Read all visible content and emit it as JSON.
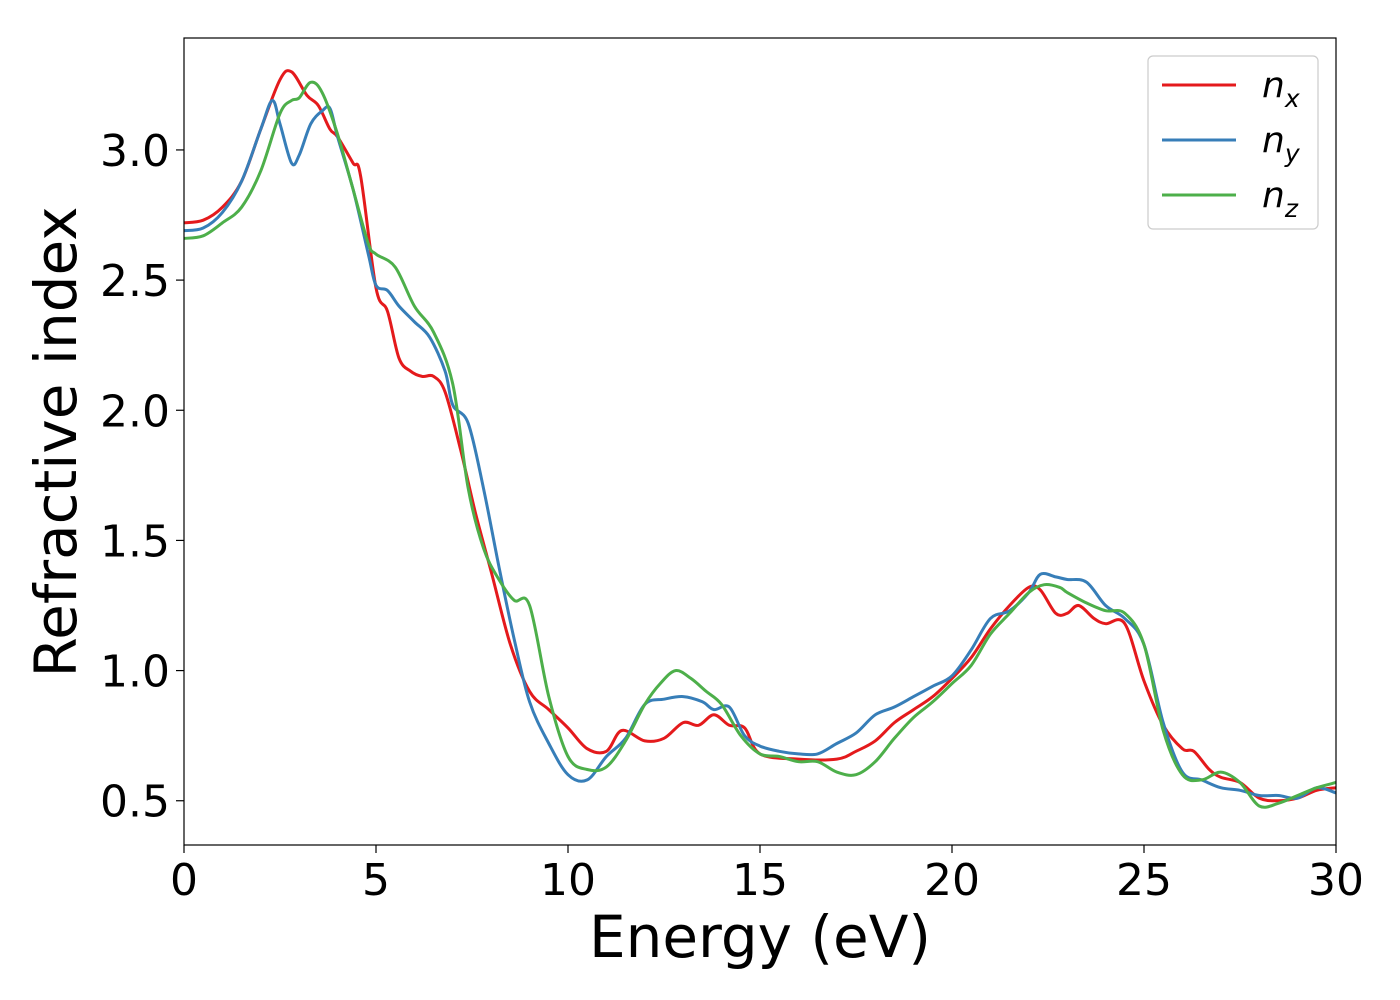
{
  "chart_data": {
    "type": "line",
    "xlabel": "Energy (eV)",
    "ylabel": "Refractive index",
    "xlim": [
      0,
      30
    ],
    "ylim": [
      0.33,
      3.43
    ],
    "xticks": [
      0,
      5,
      10,
      15,
      20,
      25,
      30
    ],
    "xtick_labels": [
      "0",
      "5",
      "10",
      "15",
      "20",
      "25",
      "30"
    ],
    "yticks": [
      0.5,
      1.0,
      1.5,
      2.0,
      2.5,
      3.0
    ],
    "ytick_labels": [
      "0.5",
      "1.0",
      "1.5",
      "2.0",
      "2.5",
      "3.0"
    ],
    "grid": false,
    "legend_position": "top-right",
    "series": [
      {
        "name": "n",
        "sub": "x",
        "color": "#e41a1c",
        "x": [
          0,
          0.5,
          1,
          1.5,
          2,
          2.5,
          2.8,
          3.2,
          3.5,
          3.8,
          4.0,
          4.4,
          4.6,
          5.0,
          5.3,
          5.6,
          5.9,
          6.2,
          6.5,
          6.8,
          7.2,
          7.6,
          8.0,
          8.5,
          9.0,
          9.5,
          10.0,
          10.5,
          11.0,
          11.4,
          12.0,
          12.5,
          13.0,
          13.4,
          13.8,
          14.2,
          14.6,
          15.0,
          16.0,
          17.0,
          17.5,
          18.0,
          18.5,
          19.0,
          19.5,
          20.0,
          20.5,
          21.0,
          21.5,
          22.0,
          22.3,
          22.7,
          23.0,
          23.3,
          23.7,
          24.0,
          24.5,
          25.0,
          25.5,
          26.0,
          26.3,
          26.7,
          27.0,
          27.5,
          28.0,
          28.5,
          29.0,
          29.5,
          30.0
        ],
        "y": [
          2.72,
          2.73,
          2.78,
          2.88,
          3.08,
          3.27,
          3.3,
          3.21,
          3.17,
          3.08,
          3.05,
          2.95,
          2.9,
          2.47,
          2.38,
          2.2,
          2.15,
          2.13,
          2.13,
          2.07,
          1.85,
          1.6,
          1.38,
          1.1,
          0.92,
          0.85,
          0.78,
          0.7,
          0.69,
          0.77,
          0.73,
          0.74,
          0.8,
          0.79,
          0.83,
          0.79,
          0.78,
          0.68,
          0.66,
          0.66,
          0.69,
          0.73,
          0.8,
          0.85,
          0.9,
          0.97,
          1.05,
          1.16,
          1.25,
          1.32,
          1.31,
          1.22,
          1.22,
          1.25,
          1.2,
          1.18,
          1.18,
          0.96,
          0.79,
          0.7,
          0.69,
          0.62,
          0.59,
          0.57,
          0.51,
          0.5,
          0.51,
          0.54,
          0.55
        ]
      },
      {
        "name": "n",
        "sub": "y",
        "color": "#377eb8",
        "x": [
          0,
          0.5,
          1,
          1.5,
          2,
          2.3,
          2.5,
          2.8,
          3.0,
          3.3,
          3.6,
          3.8,
          4.0,
          4.4,
          4.8,
          5.0,
          5.3,
          5.6,
          6.0,
          6.4,
          6.8,
          7.0,
          7.4,
          7.8,
          8.2,
          8.6,
          9.0,
          9.5,
          10.0,
          10.5,
          11.0,
          11.5,
          12.0,
          12.5,
          13.0,
          13.5,
          13.8,
          14.2,
          14.6,
          15.0,
          15.5,
          16.0,
          16.5,
          17.0,
          17.5,
          18.0,
          18.5,
          19.0,
          19.5,
          20.0,
          20.5,
          21.0,
          21.5,
          22.0,
          22.3,
          22.7,
          23.0,
          23.5,
          24.0,
          24.5,
          25.0,
          25.5,
          26.0,
          26.5,
          27.0,
          27.5,
          28.0,
          28.5,
          29.0,
          29.5,
          30.0
        ],
        "y": [
          2.69,
          2.7,
          2.76,
          2.88,
          3.08,
          3.19,
          3.1,
          2.95,
          2.98,
          3.1,
          3.15,
          3.16,
          3.05,
          2.85,
          2.6,
          2.48,
          2.46,
          2.4,
          2.34,
          2.28,
          2.15,
          2.02,
          1.95,
          1.7,
          1.4,
          1.12,
          0.88,
          0.72,
          0.6,
          0.58,
          0.67,
          0.74,
          0.87,
          0.89,
          0.9,
          0.88,
          0.85,
          0.86,
          0.75,
          0.71,
          0.69,
          0.68,
          0.68,
          0.72,
          0.76,
          0.83,
          0.86,
          0.9,
          0.94,
          0.98,
          1.08,
          1.2,
          1.23,
          1.3,
          1.37,
          1.36,
          1.35,
          1.34,
          1.25,
          1.2,
          1.1,
          0.8,
          0.61,
          0.58,
          0.55,
          0.54,
          0.52,
          0.52,
          0.51,
          0.55,
          0.53
        ]
      },
      {
        "name": "n",
        "sub": "z",
        "color": "#4daf4a",
        "x": [
          0,
          0.5,
          1,
          1.5,
          2,
          2.5,
          2.8,
          3.0,
          3.3,
          3.6,
          4.0,
          4.4,
          4.8,
          5.0,
          5.5,
          6.0,
          6.5,
          7.0,
          7.4,
          7.8,
          8.2,
          8.6,
          9.0,
          9.5,
          10.0,
          10.5,
          11.0,
          11.5,
          12.0,
          12.4,
          12.8,
          13.2,
          13.6,
          14.0,
          14.5,
          15.0,
          15.5,
          16.0,
          16.5,
          17.0,
          17.5,
          18.0,
          18.5,
          19.0,
          19.5,
          20.0,
          20.5,
          21.0,
          21.5,
          22.0,
          22.4,
          22.8,
          23.0,
          23.5,
          24.0,
          24.5,
          25.0,
          25.5,
          26.0,
          26.5,
          27.0,
          27.5,
          28.0,
          28.5,
          29.0,
          29.5,
          30.0
        ],
        "y": [
          2.66,
          2.67,
          2.72,
          2.78,
          2.92,
          3.14,
          3.19,
          3.2,
          3.26,
          3.22,
          3.06,
          2.85,
          2.64,
          2.6,
          2.55,
          2.4,
          2.3,
          2.1,
          1.7,
          1.47,
          1.35,
          1.27,
          1.25,
          0.9,
          0.67,
          0.62,
          0.63,
          0.73,
          0.87,
          0.95,
          1.0,
          0.97,
          0.92,
          0.87,
          0.75,
          0.68,
          0.67,
          0.65,
          0.65,
          0.61,
          0.6,
          0.65,
          0.74,
          0.82,
          0.88,
          0.95,
          1.02,
          1.14,
          1.22,
          1.3,
          1.33,
          1.32,
          1.3,
          1.26,
          1.23,
          1.22,
          1.1,
          0.77,
          0.6,
          0.58,
          0.61,
          0.57,
          0.48,
          0.49,
          0.52,
          0.55,
          0.57
        ]
      }
    ]
  }
}
